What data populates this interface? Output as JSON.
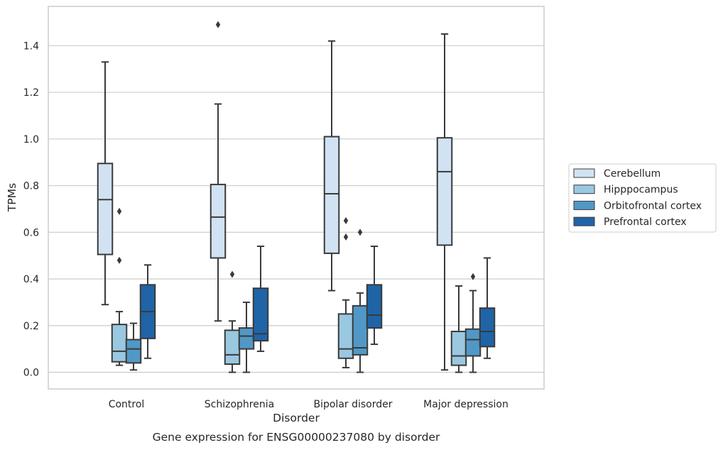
{
  "chart_data": {
    "type": "box",
    "title": "",
    "caption": "Gene expression for ENSG00000237080 by disorder",
    "xlabel": "Disorder",
    "ylabel": "TPMs",
    "ylim": [
      -0.07,
      1.57
    ],
    "yticks": [
      "0.0",
      "0.2",
      "0.4",
      "0.6",
      "0.8",
      "1.0",
      "1.2",
      "1.4"
    ],
    "grid": "horizontal",
    "legend_position": "right",
    "categories": [
      "Control",
      "Schizophrenia",
      "Bipolar disorder",
      "Major depression"
    ],
    "series": [
      {
        "name": "Cerebellum",
        "color": "#d1e2f2",
        "boxes": [
          {
            "whislo": 0.29,
            "q1": 0.505,
            "med": 0.74,
            "q3": 0.895,
            "whishi": 1.33,
            "fliers": []
          },
          {
            "whislo": 0.22,
            "q1": 0.49,
            "med": 0.665,
            "q3": 0.805,
            "whishi": 1.15,
            "fliers": [
              1.49
            ]
          },
          {
            "whislo": 0.35,
            "q1": 0.51,
            "med": 0.765,
            "q3": 1.01,
            "whishi": 1.42,
            "fliers": []
          },
          {
            "whislo": 0.01,
            "q1": 0.545,
            "med": 0.86,
            "q3": 1.005,
            "whishi": 1.45,
            "fliers": []
          }
        ]
      },
      {
        "name": "Hipppocampus",
        "color": "#9ac8e0",
        "boxes": [
          {
            "whislo": 0.03,
            "q1": 0.045,
            "med": 0.09,
            "q3": 0.205,
            "whishi": 0.26,
            "fliers": [
              0.69,
              0.48
            ]
          },
          {
            "whislo": 0.0,
            "q1": 0.035,
            "med": 0.075,
            "q3": 0.18,
            "whishi": 0.22,
            "fliers": [
              0.42
            ]
          },
          {
            "whislo": 0.02,
            "q1": 0.06,
            "med": 0.1,
            "q3": 0.25,
            "whishi": 0.31,
            "fliers": [
              0.65,
              0.58
            ]
          },
          {
            "whislo": 0.0,
            "q1": 0.03,
            "med": 0.07,
            "q3": 0.175,
            "whishi": 0.37,
            "fliers": []
          }
        ]
      },
      {
        "name": "Orbitofrontal cortex",
        "color": "#5198c6",
        "boxes": [
          {
            "whislo": 0.01,
            "q1": 0.04,
            "med": 0.1,
            "q3": 0.14,
            "whishi": 0.21,
            "fliers": []
          },
          {
            "whislo": 0.0,
            "q1": 0.1,
            "med": 0.155,
            "q3": 0.19,
            "whishi": 0.3,
            "fliers": []
          },
          {
            "whislo": 0.0,
            "q1": 0.075,
            "med": 0.105,
            "q3": 0.285,
            "whishi": 0.34,
            "fliers": [
              0.6
            ]
          },
          {
            "whislo": 0.0,
            "q1": 0.07,
            "med": 0.14,
            "q3": 0.185,
            "whishi": 0.35,
            "fliers": [
              0.41
            ]
          }
        ]
      },
      {
        "name": "Prefrontal cortex",
        "color": "#1f64a7",
        "boxes": [
          {
            "whislo": 0.06,
            "q1": 0.145,
            "med": 0.26,
            "q3": 0.375,
            "whishi": 0.46,
            "fliers": []
          },
          {
            "whislo": 0.09,
            "q1": 0.135,
            "med": 0.165,
            "q3": 0.36,
            "whishi": 0.54,
            "fliers": []
          },
          {
            "whislo": 0.12,
            "q1": 0.19,
            "med": 0.245,
            "q3": 0.375,
            "whishi": 0.54,
            "fliers": []
          },
          {
            "whislo": 0.06,
            "q1": 0.11,
            "med": 0.175,
            "q3": 0.275,
            "whishi": 0.49,
            "fliers": []
          }
        ]
      }
    ]
  }
}
